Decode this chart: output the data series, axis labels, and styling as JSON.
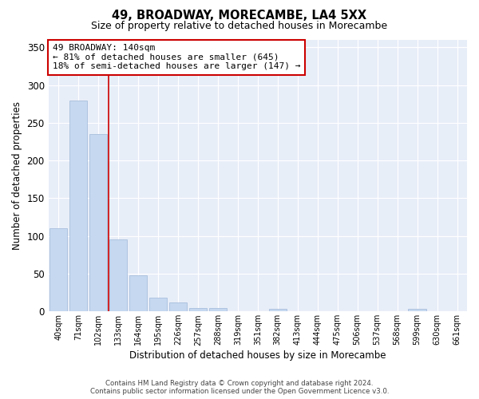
{
  "title": "49, BROADWAY, MORECAMBE, LA4 5XX",
  "subtitle": "Size of property relative to detached houses in Morecambe",
  "xlabel": "Distribution of detached houses by size in Morecambe",
  "ylabel": "Number of detached properties",
  "categories": [
    "40sqm",
    "71sqm",
    "102sqm",
    "133sqm",
    "164sqm",
    "195sqm",
    "226sqm",
    "257sqm",
    "288sqm",
    "319sqm",
    "351sqm",
    "382sqm",
    "413sqm",
    "444sqm",
    "475sqm",
    "506sqm",
    "537sqm",
    "568sqm",
    "599sqm",
    "630sqm",
    "661sqm"
  ],
  "values": [
    110,
    280,
    235,
    95,
    48,
    18,
    12,
    5,
    5,
    0,
    0,
    3,
    0,
    0,
    0,
    0,
    0,
    0,
    3,
    0,
    0
  ],
  "bar_color": "#c5d8f0",
  "bar_edge_color": "#a0b8d8",
  "vline_color": "#cc0000",
  "annotation_text": "49 BROADWAY: 140sqm\n← 81% of detached houses are smaller (645)\n18% of semi-detached houses are larger (147) →",
  "annotation_box_color": "white",
  "annotation_box_edge_color": "#cc0000",
  "ylim": [
    0,
    360
  ],
  "yticks": [
    0,
    50,
    100,
    150,
    200,
    250,
    300,
    350
  ],
  "background_color": "#e8eef8",
  "footer_line1": "Contains HM Land Registry data © Crown copyright and database right 2024.",
  "footer_line2": "Contains public sector information licensed under the Open Government Licence v3.0."
}
